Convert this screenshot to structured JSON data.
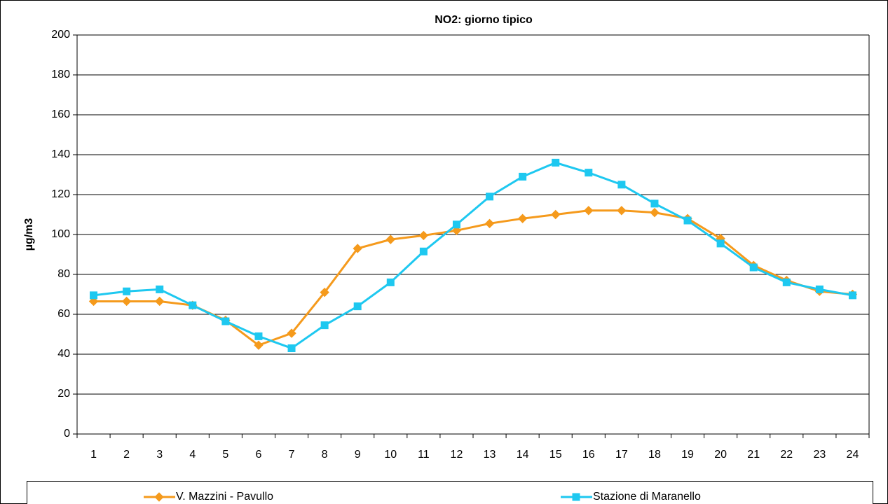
{
  "chart_data": {
    "type": "line",
    "title": "NO2: giorno tipico",
    "y_label": "µg/m3",
    "categories": [
      "1",
      "2",
      "3",
      "4",
      "5",
      "6",
      "7",
      "8",
      "9",
      "10",
      "11",
      "12",
      "13",
      "14",
      "15",
      "16",
      "17",
      "18",
      "19",
      "20",
      "21",
      "22",
      "23",
      "24"
    ],
    "series": [
      {
        "name": "V. Mazzini - Pavullo",
        "color": "#f59a1c",
        "marker": "diamond",
        "values": [
          66.5,
          66.5,
          66.5,
          64.5,
          57,
          44.5,
          50.5,
          71,
          93,
          97.5,
          99.5,
          102,
          105.5,
          108,
          110,
          112,
          112,
          111,
          108,
          98,
          84.5,
          77,
          71.5,
          70
        ]
      },
      {
        "name": "Stazione di Maranello",
        "color": "#1ec8f0",
        "marker": "square",
        "values": [
          69.5,
          71.5,
          72.5,
          64.5,
          56.5,
          49,
          43,
          54.5,
          64,
          76,
          91.5,
          105,
          119,
          129,
          136,
          131,
          125,
          115.5,
          107,
          95.5,
          83.5,
          76,
          72.5,
          69.5
        ]
      }
    ],
    "ylim": [
      0,
      200
    ],
    "yticks": [
      0,
      20,
      40,
      60,
      80,
      100,
      120,
      140,
      160,
      180,
      200
    ],
    "grid": true,
    "legend": "bottom"
  }
}
